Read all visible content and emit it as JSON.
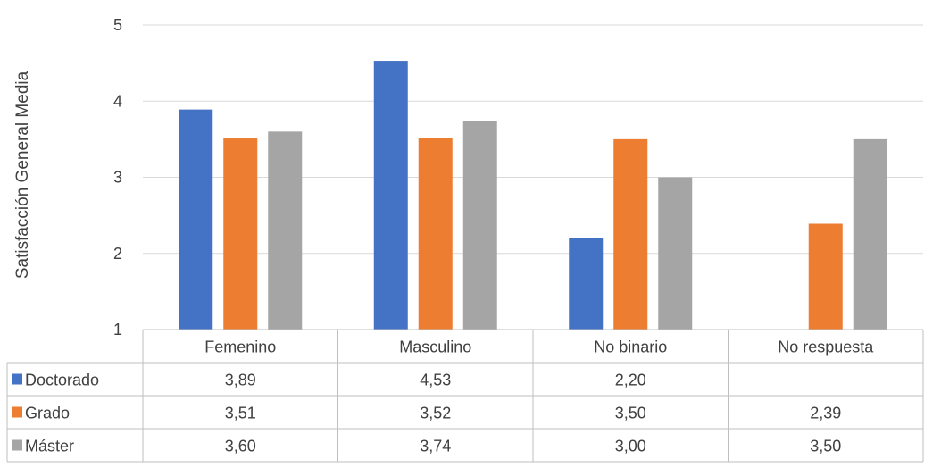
{
  "chart_data": {
    "type": "bar",
    "ylabel": "Satisfacción General Media",
    "ylim": [
      1,
      5
    ],
    "yticks": [
      1,
      2,
      3,
      4,
      5
    ],
    "grid": true,
    "legend": "table-left",
    "categories": [
      "Femenino",
      "Masculino",
      "No binario",
      "No respuesta"
    ],
    "series": [
      {
        "name": "Doctorado",
        "color": "#4472C4",
        "values": [
          3.89,
          4.53,
          2.2,
          null
        ],
        "labels": [
          "3,89",
          "4,53",
          "2,20",
          ""
        ]
      },
      {
        "name": "Grado",
        "color": "#ED7D31",
        "values": [
          3.51,
          3.52,
          3.5,
          2.39
        ],
        "labels": [
          "3,51",
          "3,52",
          "3,50",
          "2,39"
        ]
      },
      {
        "name": "Máster",
        "color": "#A5A5A5",
        "values": [
          3.6,
          3.74,
          3.0,
          3.5
        ],
        "labels": [
          "3,60",
          "3,74",
          "3,00",
          "3,50"
        ]
      }
    ]
  }
}
